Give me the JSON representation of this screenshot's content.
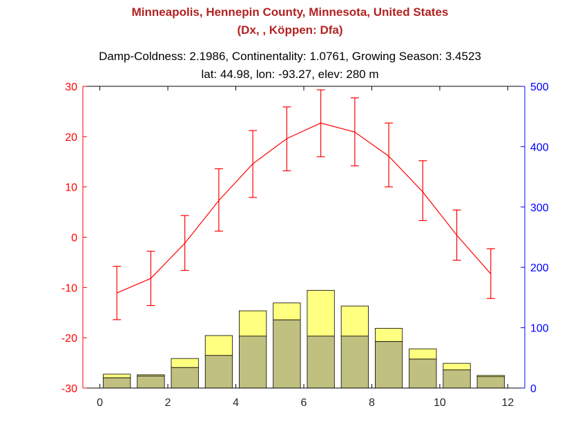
{
  "figure": {
    "title_line1": "Minneapolis, Hennepin County, Minnesota, United States",
    "title_line2": "(Dx, , Köppen: Dfa)",
    "subtitle_line1": "Damp-Coldness: 2.1986, Continentality: 1.0761, Growing Season: 3.4523",
    "subtitle_line2": "lat: 44.98, lon: -93.27, elev: 280 m"
  },
  "colors": {
    "title": "#b22222",
    "temperature": "#ff0000",
    "precip_axis": "#0000ff",
    "bar_yellow": "#ffff80",
    "bar_blue": "#8080ff",
    "bar_overlap": "#c0c080"
  },
  "chart_data": {
    "type": "bar+line",
    "title": "Minneapolis, Hennepin County, Minnesota, United States",
    "x": [
      0.5,
      1.5,
      2.5,
      3.5,
      4.5,
      5.5,
      6.5,
      7.5,
      8.5,
      9.5,
      10.5,
      11.5
    ],
    "xlim": [
      -0.5,
      12.5
    ],
    "xticks": [
      0,
      2,
      4,
      6,
      8,
      10,
      12
    ],
    "left_axis": {
      "ylim": [
        -30,
        30
      ],
      "ticks": [
        -30,
        -20,
        -10,
        0,
        10,
        20,
        30
      ],
      "color": "#ff0000"
    },
    "right_axis": {
      "ylim": [
        0,
        500
      ],
      "ticks": [
        0,
        100,
        200,
        300,
        400,
        500
      ],
      "color": "#0000ff"
    },
    "grid": false,
    "series": [
      {
        "kind": "line_errorbar",
        "axis": "left",
        "mean": [
          -11.1,
          -8.2,
          -1.2,
          7.3,
          14.6,
          19.6,
          22.7,
          20.9,
          16.1,
          9.0,
          0.4,
          -7.3
        ],
        "upper": [
          -5.8,
          -2.8,
          4.3,
          13.6,
          21.2,
          25.9,
          29.3,
          27.7,
          22.7,
          15.2,
          5.4,
          -2.3
        ],
        "lower": [
          -16.4,
          -13.6,
          -6.6,
          1.2,
          7.9,
          13.2,
          16.0,
          14.2,
          10.0,
          3.3,
          -4.6,
          -12.2
        ]
      },
      {
        "kind": "bar",
        "axis": "right",
        "values": [
          17,
          20,
          34,
          54,
          86,
          113,
          86,
          86,
          77,
          48,
          30,
          19
        ]
      },
      {
        "kind": "bar",
        "axis": "right",
        "values": [
          23,
          22,
          49,
          87,
          128,
          141,
          162,
          136,
          99,
          65,
          41,
          21
        ]
      }
    ]
  }
}
